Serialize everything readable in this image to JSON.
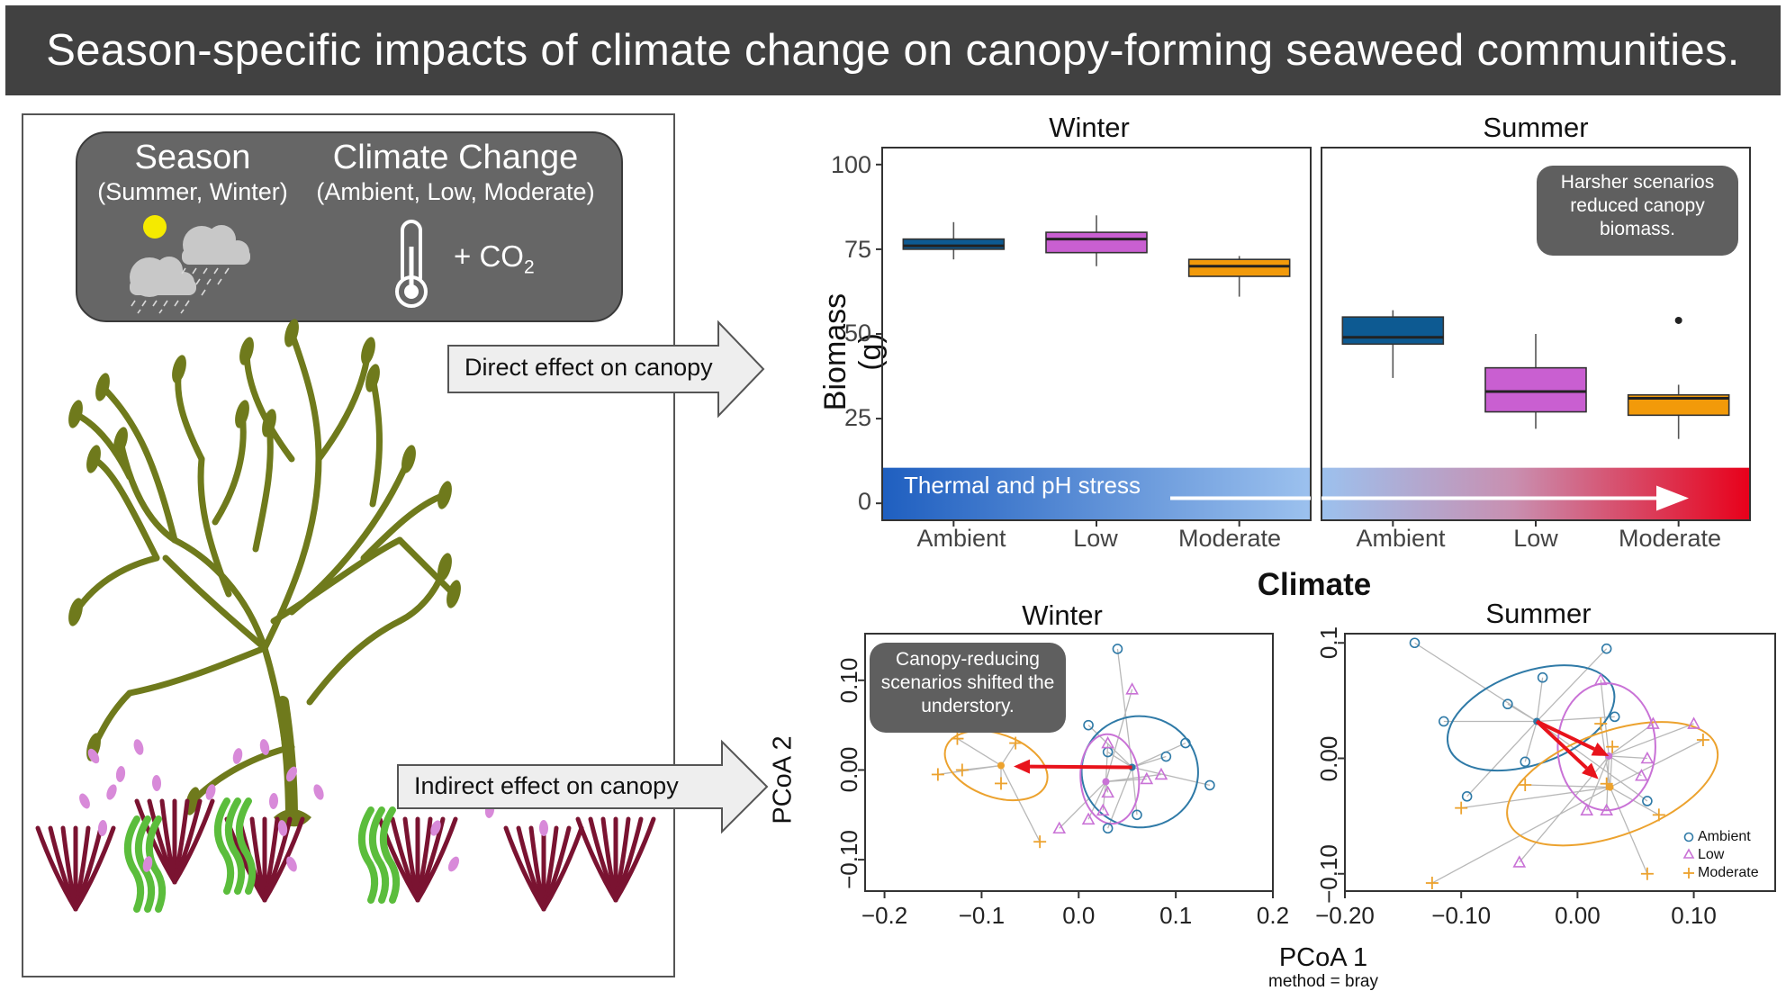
{
  "title": "Season-specific impacts of climate change on canopy-forming seaweed communities.",
  "factors": {
    "season_title": "Season",
    "season_sub": "(Summer, Winter)",
    "climate_title": "Climate Change",
    "climate_sub": "(Ambient, Low, Moderate)",
    "co2_label": "+ CO",
    "co2_sub": "2"
  },
  "arrows": {
    "direct": "Direct effect on canopy",
    "indirect": "Indirect effect on canopy"
  },
  "chart_data": [
    {
      "type": "box",
      "facets": [
        "Winter",
        "Summer"
      ],
      "categories": [
        "Ambient",
        "Low",
        "Moderate"
      ],
      "xlabel": "Climate",
      "ylabel": "Biomass (g)",
      "yticks": [
        0,
        25,
        50,
        75,
        100
      ],
      "ylim": [
        -5,
        105
      ],
      "series_colors": {
        "Ambient": "#0d5a92",
        "Low": "#c95fd1",
        "Moderate": "#f29a0a"
      },
      "boxes": {
        "Winter": [
          {
            "category": "Ambient",
            "min": 72,
            "q1": 75,
            "median": 76,
            "q3": 78,
            "max": 83
          },
          {
            "category": "Low",
            "min": 70,
            "q1": 74,
            "median": 78,
            "q3": 80,
            "max": 85
          },
          {
            "category": "Moderate",
            "min": 61,
            "q1": 67,
            "median": 70,
            "q3": 72,
            "max": 73
          }
        ],
        "Summer": [
          {
            "category": "Ambient",
            "min": 37,
            "q1": 47,
            "median": 49,
            "q3": 55,
            "max": 57
          },
          {
            "category": "Low",
            "min": 22,
            "q1": 27,
            "median": 33,
            "q3": 40,
            "max": 50
          },
          {
            "category": "Moderate",
            "min": 19,
            "q1": 26,
            "median": 31,
            "q3": 32,
            "max": 35,
            "outliers": [
              54
            ]
          }
        ]
      },
      "stress_band_label": "Thermal and pH stress",
      "stress_band_colors": [
        "#1f5fc0",
        "#9cc1ee",
        "#e8001a"
      ],
      "callout": "Harsher scenarios reduced canopy biomass."
    },
    {
      "type": "scatter",
      "facets": [
        "Winter",
        "Summer"
      ],
      "xlabel": "PCoA 1",
      "xlabel_sub": "method = bray",
      "ylabel": "PCoA 2",
      "winter": {
        "xticks": [
          "−0.2",
          "−0.1",
          "0.0",
          "0.1",
          "0.2"
        ],
        "xtick_values": [
          -0.2,
          -0.1,
          0.0,
          0.1,
          0.2
        ],
        "yticks": [
          "−0.10",
          "0.00",
          "0.10"
        ],
        "ytick_values": [
          -0.1,
          0.0,
          0.1
        ],
        "xlim": [
          -0.22,
          0.2
        ],
        "ylim": [
          -0.135,
          0.152
        ],
        "centroids": {
          "Ambient": [
            0.055,
            0.003
          ],
          "Low": [
            0.028,
            -0.013
          ],
          "Moderate": [
            -0.08,
            0.005
          ]
        },
        "points": {
          "Ambient": [
            [
              0.04,
              0.135
            ],
            [
              0.01,
              0.05
            ],
            [
              0.03,
              0.02
            ],
            [
              0.11,
              0.03
            ],
            [
              0.09,
              0.015
            ],
            [
              0.135,
              -0.017
            ],
            [
              0.06,
              -0.05
            ],
            [
              0.03,
              -0.065
            ]
          ],
          "Low": [
            [
              0.055,
              0.09
            ],
            [
              0.03,
              0.03
            ],
            [
              0.07,
              -0.01
            ],
            [
              0.085,
              -0.005
            ],
            [
              0.03,
              -0.025
            ],
            [
              0.025,
              -0.045
            ],
            [
              0.01,
              -0.055
            ],
            [
              -0.02,
              -0.065
            ]
          ],
          "Moderate": [
            [
              -0.125,
              0.035
            ],
            [
              -0.065,
              0.03
            ],
            [
              -0.12,
              -0.0
            ],
            [
              -0.145,
              -0.005
            ],
            [
              -0.08,
              -0.015
            ],
            [
              -0.04,
              -0.08
            ]
          ]
        },
        "shift_arrow": {
          "from": [
            0.055,
            0.003
          ],
          "to": [
            -0.067,
            0.004
          ]
        },
        "callout": "Canopy-reducing scenarios shifted the understory."
      },
      "summer": {
        "xticks": [
          "−0.20",
          "−0.10",
          "0.00",
          "0.10"
        ],
        "xtick_values": [
          -0.2,
          -0.1,
          0.0,
          0.1
        ],
        "yticks": [
          "−0.10",
          "0.00",
          "0.1"
        ],
        "ytick_values": [
          -0.1,
          0.0,
          0.1
        ],
        "xlim": [
          -0.2,
          0.17
        ],
        "ylim": [
          -0.115,
          0.108
        ],
        "centroids": {
          "Ambient": [
            -0.035,
            0.032
          ],
          "Low": [
            0.027,
            0.002
          ],
          "Moderate": [
            0.028,
            -0.025
          ]
        },
        "points": {
          "Ambient": [
            [
              -0.14,
              0.1
            ],
            [
              0.025,
              0.095
            ],
            [
              -0.03,
              0.07
            ],
            [
              -0.115,
              0.032
            ],
            [
              -0.06,
              0.047
            ],
            [
              0.032,
              0.036
            ],
            [
              -0.045,
              -0.003
            ],
            [
              -0.095,
              -0.033
            ],
            [
              0.06,
              -0.037
            ]
          ],
          "Low": [
            [
              0.02,
              0.068
            ],
            [
              0.1,
              0.03
            ],
            [
              0.065,
              0.03
            ],
            [
              0.06,
              0.0
            ],
            [
              0.055,
              -0.015
            ],
            [
              0.008,
              -0.045
            ],
            [
              0.025,
              -0.045
            ],
            [
              -0.05,
              -0.09
            ]
          ],
          "Moderate": [
            [
              0.02,
              0.03
            ],
            [
              0.108,
              0.016
            ],
            [
              0.03,
              0.01
            ],
            [
              -0.045,
              -0.023
            ],
            [
              -0.1,
              -0.043
            ],
            [
              0.025,
              -0.022
            ],
            [
              -0.125,
              -0.108
            ],
            [
              0.06,
              -0.1
            ],
            [
              0.07,
              -0.049
            ]
          ]
        },
        "shift_arrows": [
          {
            "from": [
              -0.035,
              0.032
            ],
            "to": [
              0.027,
              0.002
            ]
          },
          {
            "from": [
              -0.035,
              0.032
            ],
            "to": [
              0.018,
              -0.018
            ]
          }
        ],
        "legend": [
          "Ambient",
          "Low",
          "Moderate"
        ]
      },
      "series_colors": {
        "Ambient": "#2f7aa7",
        "Low": "#c972d6",
        "Moderate": "#eca22e"
      }
    }
  ]
}
